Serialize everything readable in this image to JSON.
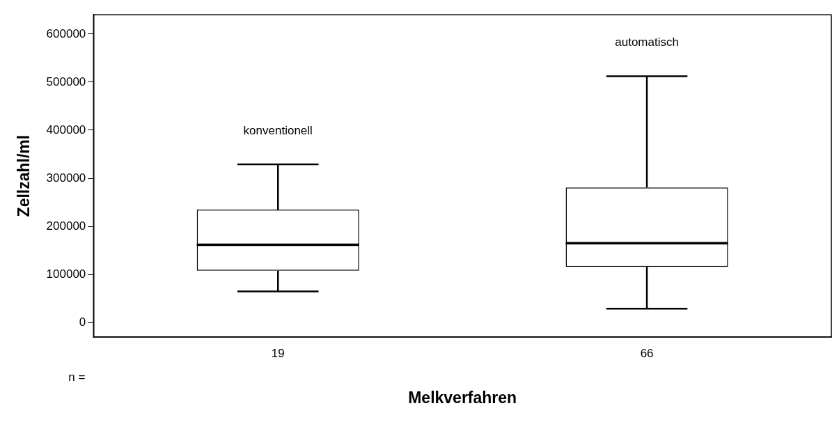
{
  "chart_data": {
    "type": "box",
    "xlabel": "Melkverfahren",
    "ylabel": "Zellzahl/ml",
    "categories": [
      "19",
      "66"
    ],
    "boxes": [
      {
        "low": 65000,
        "q1": 108000,
        "median": 162000,
        "q3": 235000,
        "high": 329000
      },
      {
        "low": 29000,
        "q1": 116000,
        "median": 165000,
        "q3": 281000,
        "high": 512000
      }
    ],
    "ylim": [
      -30000,
      640000
    ],
    "yticks": [
      0,
      100000,
      200000,
      300000,
      400000,
      500000,
      600000
    ],
    "annotations": [
      "konventionell",
      "automatisch",
      "n ="
    ]
  }
}
